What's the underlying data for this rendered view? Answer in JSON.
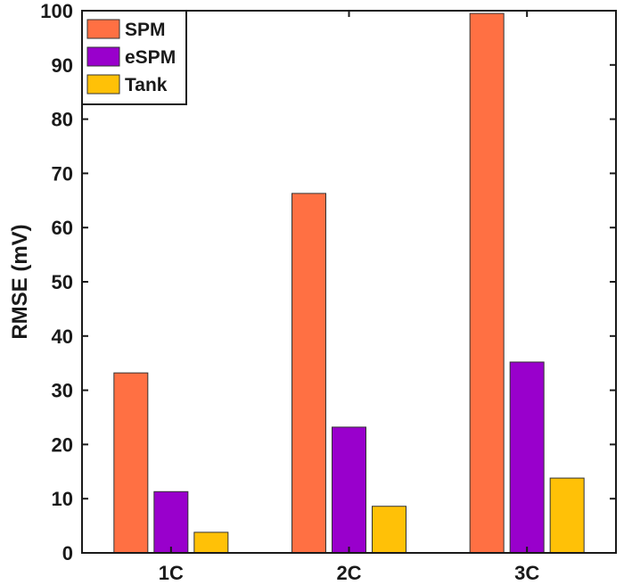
{
  "chart_data": {
    "type": "bar",
    "categories": [
      "1C",
      "2C",
      "3C"
    ],
    "series": [
      {
        "name": "SPM",
        "values": [
          33.2,
          66.3,
          99.5
        ],
        "color": "#FF7043"
      },
      {
        "name": "eSPM",
        "values": [
          11.3,
          23.2,
          35.2
        ],
        "color": "#9900CC"
      },
      {
        "name": "Tank",
        "values": [
          3.8,
          8.6,
          13.8
        ],
        "color": "#FFC107"
      }
    ],
    "ylabel": "RMSE (mV)",
    "xlabel": "",
    "ylim": [
      0,
      100
    ],
    "yticks": [
      0,
      10,
      20,
      30,
      40,
      50,
      60,
      70,
      80,
      90,
      100
    ],
    "legend_position": "top-left",
    "grid": false
  }
}
